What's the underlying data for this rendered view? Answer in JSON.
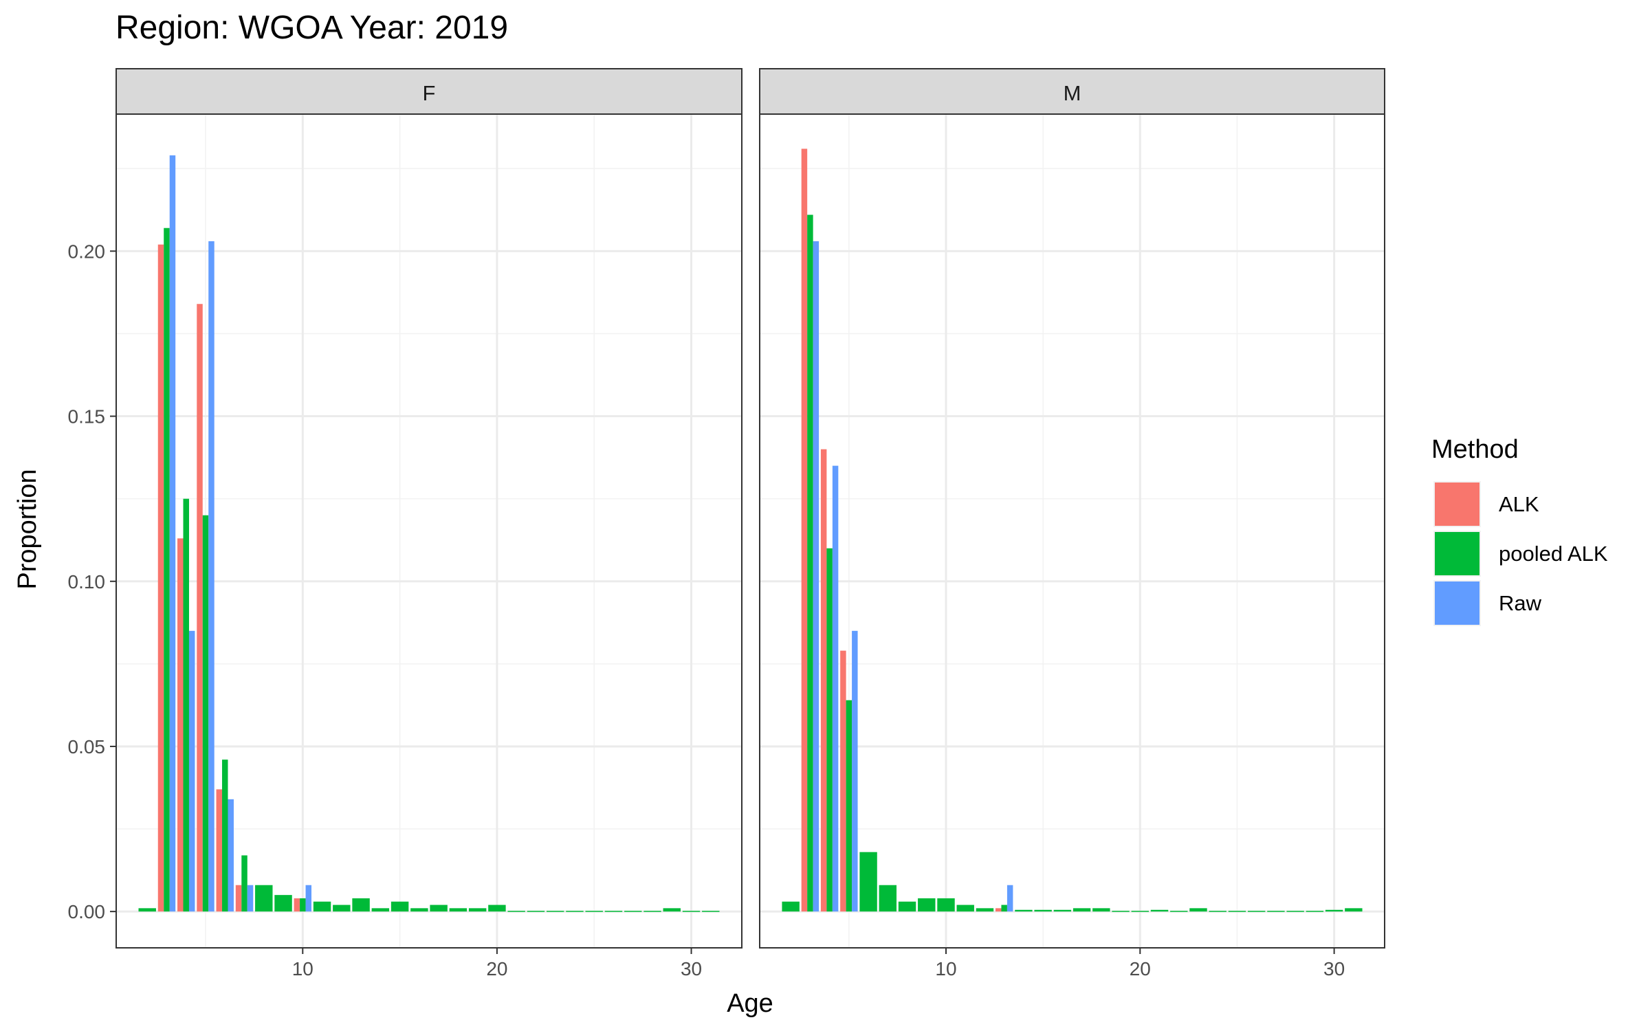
{
  "chart_data": {
    "type": "bar",
    "title": "Region: WGOA Year: 2019",
    "xlabel": "Age",
    "ylabel": "Proportion",
    "xlim": [
      0.4,
      32.6
    ],
    "ylim": [
      -0.011,
      0.2415
    ],
    "x_ticks": [
      10,
      20,
      30
    ],
    "y_ticks": [
      0.0,
      0.05,
      0.1,
      0.15,
      0.2
    ],
    "y_tick_labels": [
      "0.00",
      "0.05",
      "0.10",
      "0.15",
      "0.20"
    ],
    "grid": true,
    "legend_position": "right",
    "legend_title": "Method",
    "series": [
      {
        "name": "ALK",
        "color": "#F8766D"
      },
      {
        "name": "pooled ALK",
        "color": "#00BA38"
      },
      {
        "name": "Raw",
        "color": "#619CFF"
      }
    ],
    "panels": [
      {
        "label": "F",
        "data": {
          "ALK": [
            [
              3,
              0.202
            ],
            [
              4,
              0.113
            ],
            [
              5,
              0.184
            ],
            [
              6,
              0.037
            ],
            [
              7,
              0.008
            ],
            [
              10,
              0.004
            ]
          ],
          "pooled ALK": [
            [
              2,
              0.001
            ],
            [
              3,
              0.207
            ],
            [
              4,
              0.125
            ],
            [
              5,
              0.12
            ],
            [
              6,
              0.046
            ],
            [
              7,
              0.017
            ],
            [
              8,
              0.008
            ],
            [
              9,
              0.005
            ],
            [
              10,
              0.004
            ],
            [
              11,
              0.003
            ],
            [
              12,
              0.002
            ],
            [
              13,
              0.004
            ],
            [
              14,
              0.001
            ],
            [
              15,
              0.003
            ],
            [
              16,
              0.001
            ],
            [
              17,
              0.002
            ],
            [
              18,
              0.001
            ],
            [
              19,
              0.001
            ],
            [
              20,
              0.002
            ],
            [
              21,
              0.0002
            ],
            [
              22,
              0.0002
            ],
            [
              23,
              0.0002
            ],
            [
              24,
              0.0002
            ],
            [
              25,
              0.0002
            ],
            [
              26,
              0.0002
            ],
            [
              27,
              0.0002
            ],
            [
              28,
              0.0002
            ],
            [
              29,
              0.001
            ],
            [
              30,
              0.0002
            ],
            [
              31,
              0.0002
            ]
          ],
          "Raw": [
            [
              3,
              0.229
            ],
            [
              4,
              0.085
            ],
            [
              5,
              0.203
            ],
            [
              6,
              0.034
            ],
            [
              7,
              0.008
            ],
            [
              10,
              0.008
            ]
          ]
        }
      },
      {
        "label": "M",
        "data": {
          "ALK": [
            [
              3,
              0.231
            ],
            [
              4,
              0.14
            ],
            [
              5,
              0.079
            ],
            [
              13,
              0.001
            ]
          ],
          "pooled ALK": [
            [
              2,
              0.003
            ],
            [
              3,
              0.211
            ],
            [
              4,
              0.11
            ],
            [
              5,
              0.064
            ],
            [
              6,
              0.018
            ],
            [
              7,
              0.008
            ],
            [
              8,
              0.003
            ],
            [
              9,
              0.004
            ],
            [
              10,
              0.004
            ],
            [
              11,
              0.002
            ],
            [
              12,
              0.001
            ],
            [
              13,
              0.002
            ],
            [
              14,
              0.0005
            ],
            [
              15,
              0.0005
            ],
            [
              16,
              0.0005
            ],
            [
              17,
              0.001
            ],
            [
              18,
              0.001
            ],
            [
              19,
              0.0002
            ],
            [
              20,
              0.0002
            ],
            [
              21,
              0.0005
            ],
            [
              22,
              0.0002
            ],
            [
              23,
              0.001
            ],
            [
              24,
              0.0002
            ],
            [
              25,
              0.0002
            ],
            [
              26,
              0.0002
            ],
            [
              27,
              0.0002
            ],
            [
              28,
              0.0002
            ],
            [
              29,
              0.0002
            ],
            [
              30,
              0.0005
            ],
            [
              31,
              0.001
            ]
          ],
          "Raw": [
            [
              3,
              0.203
            ],
            [
              4,
              0.135
            ],
            [
              5,
              0.085
            ],
            [
              13,
              0.008
            ]
          ]
        }
      }
    ]
  }
}
